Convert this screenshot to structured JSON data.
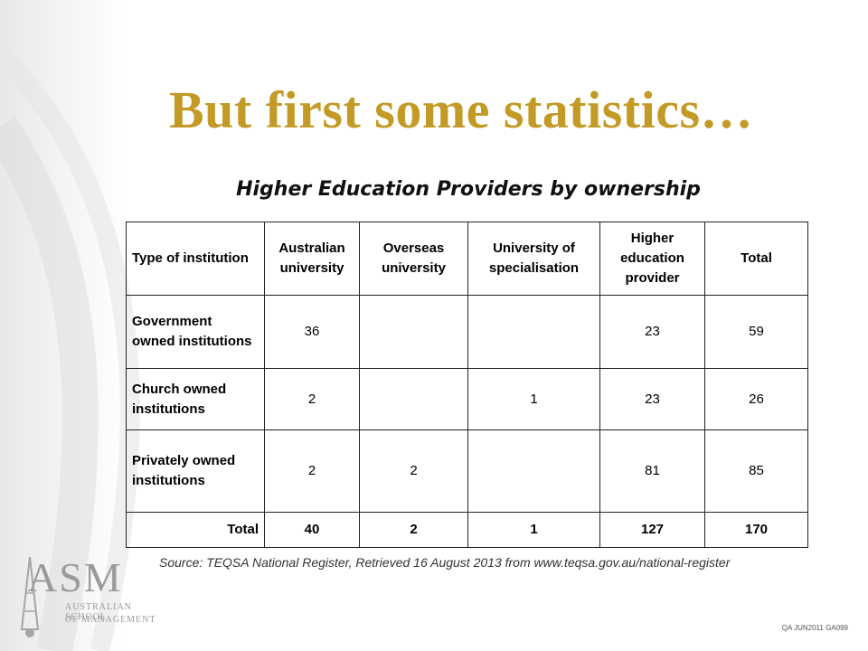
{
  "slide": {
    "title": "But first some statistics…",
    "subtitle": "Higher Education Providers by ownership"
  },
  "table": {
    "headers": [
      "Type of institution",
      "Australian university",
      "Overseas university",
      "University of specialisation",
      "Higher education provider",
      "Total"
    ],
    "rows": [
      {
        "label": "Government owned institutions",
        "values": [
          "36",
          "",
          "",
          "23",
          "59"
        ]
      },
      {
        "label": "Church owned institutions",
        "values": [
          "2",
          "",
          "1",
          "23",
          "26"
        ]
      },
      {
        "label": "Privately owned institutions",
        "values": [
          "2",
          "2",
          "",
          "81",
          "85"
        ]
      }
    ],
    "total": {
      "label": "Total",
      "values": [
        "40",
        "2",
        "1",
        "127",
        "170"
      ]
    }
  },
  "source": "Source: TEQSA National Register, Retrieved 16 August 2013 from www.teqsa.gov.au/national-register",
  "logo": {
    "mark": "ASM",
    "line1": "AUSTRALIAN SCHOOL",
    "line2": "OF MANAGEMENT"
  },
  "footer_code": "QA JUN2011 GA099",
  "colors": {
    "title": "#c39a26",
    "background": "#ffffff",
    "logo": "#9a9a9a"
  }
}
